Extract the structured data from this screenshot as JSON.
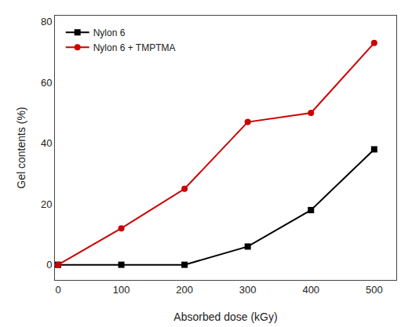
{
  "chart_data": {
    "type": "line",
    "x": [
      0,
      100,
      200,
      300,
      400,
      500
    ],
    "series": [
      {
        "name": "Nylon 6",
        "color": "#000000",
        "marker": "square",
        "values": [
          0,
          0,
          0,
          6,
          18,
          38
        ]
      },
      {
        "name": "Nylon 6 + TMPTMA",
        "color": "#cc0000",
        "marker": "circle",
        "values": [
          0,
          12,
          25,
          47,
          50,
          73
        ]
      }
    ],
    "xlabel": "Absorbed dose (kGy)",
    "ylabel": "Gel contents (%)",
    "xlim": [
      -5,
      535
    ],
    "ylim": [
      -5,
      82
    ],
    "xticks": [
      0,
      100,
      200,
      300,
      400,
      500
    ],
    "yticks": [
      0,
      20,
      40,
      60,
      80
    ],
    "grid": false,
    "legend": "upper left"
  }
}
